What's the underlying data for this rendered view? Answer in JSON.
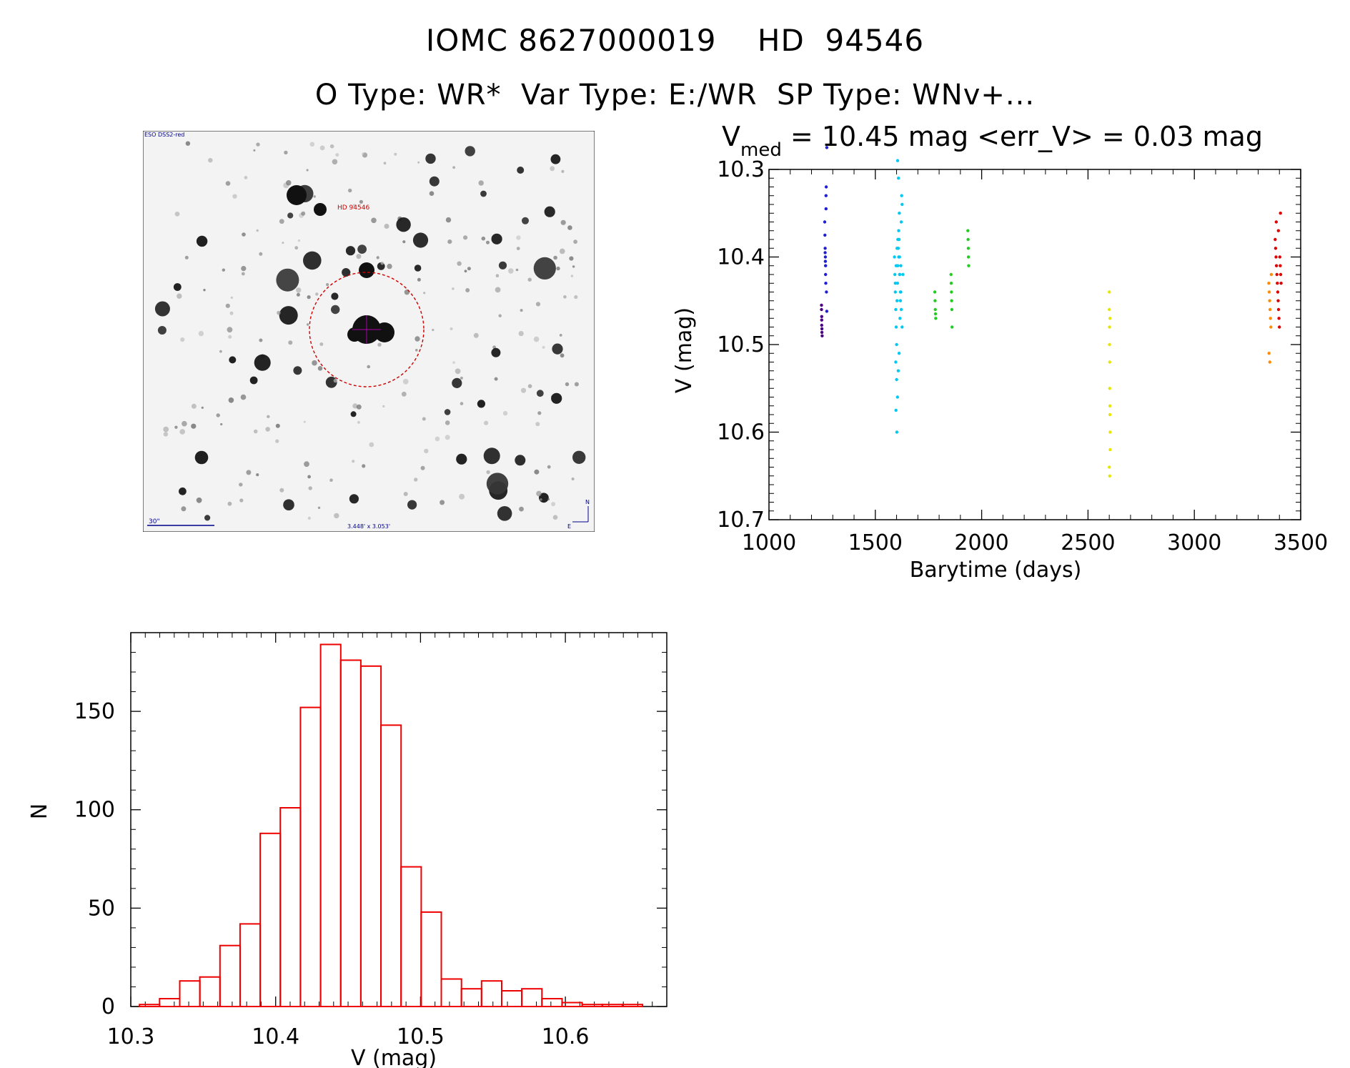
{
  "header": {
    "title_line1": "IOMC 8627000019    HD  94546",
    "title_line2": "O Type: WR*  Var Type: E:/WR  SP Type: WNv+..."
  },
  "finder": {
    "survey_label": "ESO DSS2-red",
    "target_label": "HD 94546",
    "scale_label": "30\"",
    "fov_label": "3.448' x 3.053'",
    "north_label": "N",
    "east_label": "E",
    "circle_color": "#cc0000",
    "label_color": "#00008b"
  },
  "chart_data": [
    {
      "type": "scatter",
      "title_main": "V",
      "title_sub": "med",
      "title_rest": " = 10.45 mag <err_V> = 0.03 mag",
      "xlabel": "Barytime (days)",
      "ylabel": "V (mag)",
      "xlim": [
        1000,
        3500
      ],
      "ylim": [
        10.7,
        10.3
      ],
      "y_inverted": true,
      "xticks": [
        1000,
        1500,
        2000,
        2500,
        3000,
        3500
      ],
      "yticks": [
        10.3,
        10.4,
        10.5,
        10.6,
        10.7
      ],
      "xtick_labels": [
        "1000",
        "1500",
        "2000",
        "2500",
        "3000",
        "3500"
      ],
      "ytick_labels": [
        "10.3",
        "10.4",
        "10.5",
        "10.6",
        "10.7"
      ],
      "grid": false,
      "series": [
        {
          "color": "#4b0082",
          "x": [
            1247,
            1247,
            1248,
            1248,
            1248,
            1249,
            1249,
            1250
          ],
          "y": [
            10.455,
            10.46,
            10.468,
            10.472,
            10.478,
            10.482,
            10.486,
            10.49
          ]
        },
        {
          "color": "#1f1fd6",
          "x": [
            1262,
            1263,
            1264,
            1264,
            1265,
            1265,
            1266,
            1266,
            1267,
            1268,
            1268,
            1269,
            1270,
            1272,
            1272
          ],
          "y": [
            10.36,
            10.375,
            10.39,
            10.395,
            10.4,
            10.405,
            10.41,
            10.42,
            10.43,
            10.345,
            10.33,
            10.32,
            10.44,
            10.462,
            10.275
          ]
        },
        {
          "color": "#00c8f0",
          "x": [
            1590,
            1592,
            1594,
            1596,
            1598,
            1600,
            1602,
            1604,
            1606,
            1608,
            1610,
            1612,
            1614,
            1616,
            1618,
            1620,
            1622,
            1624,
            1626,
            1596,
            1600,
            1604,
            1608,
            1612,
            1616,
            1620,
            1594,
            1598,
            1602,
            1606,
            1610,
            1614,
            1618,
            1622,
            1626,
            1630,
            1597,
            1601,
            1605,
            1609,
            1613
          ],
          "y": [
            10.4,
            10.42,
            10.44,
            10.46,
            10.48,
            10.5,
            10.45,
            10.43,
            10.41,
            10.39,
            10.37,
            10.38,
            10.4,
            10.42,
            10.45,
            10.41,
            10.36,
            10.33,
            10.34,
            10.52,
            10.54,
            10.56,
            10.53,
            10.51,
            10.47,
            10.44,
            10.43,
            10.41,
            10.39,
            10.38,
            10.4,
            10.42,
            10.44,
            10.46,
            10.48,
            10.42,
            10.575,
            10.6,
            10.29,
            10.31,
            10.35
          ]
        },
        {
          "color": "#22cc22",
          "x": [
            1780,
            1781,
            1782,
            1783,
            1784,
            1856,
            1857,
            1858,
            1859,
            1860,
            1861,
            1935,
            1936,
            1937,
            1938,
            1939
          ],
          "y": [
            10.44,
            10.45,
            10.46,
            10.465,
            10.47,
            10.42,
            10.43,
            10.44,
            10.45,
            10.46,
            10.48,
            10.37,
            10.38,
            10.39,
            10.4,
            10.41
          ]
        },
        {
          "color": "#e6e600",
          "x": [
            2600,
            2600,
            2601,
            2601,
            2602,
            2602,
            2603,
            2603,
            2604,
            2604,
            2600,
            2602,
            2603
          ],
          "y": [
            10.44,
            10.46,
            10.48,
            10.5,
            10.52,
            10.55,
            10.57,
            10.58,
            10.6,
            10.62,
            10.64,
            10.65,
            10.47
          ]
        },
        {
          "color": "#ff8c00",
          "x": [
            3350,
            3352,
            3354,
            3356,
            3358,
            3360,
            3362,
            3351,
            3355
          ],
          "y": [
            10.43,
            10.44,
            10.45,
            10.46,
            10.47,
            10.48,
            10.42,
            10.51,
            10.52
          ]
        },
        {
          "color": "#dd0000",
          "x": [
            3380,
            3382,
            3384,
            3386,
            3388,
            3390,
            3392,
            3394,
            3396,
            3398,
            3400,
            3402,
            3404,
            3406,
            3408,
            3385,
            3395,
            3405
          ],
          "y": [
            10.38,
            10.39,
            10.4,
            10.41,
            10.42,
            10.43,
            10.44,
            10.45,
            10.46,
            10.47,
            10.48,
            10.4,
            10.41,
            10.42,
            10.43,
            10.36,
            10.37,
            10.35
          ]
        }
      ]
    },
    {
      "type": "bar",
      "chart_subtype": "histogram",
      "xlabel": "V (mag)",
      "ylabel": "N",
      "xlim": [
        10.3,
        10.67
      ],
      "ylim": [
        0,
        190
      ],
      "xticks": [
        10.3,
        10.4,
        10.5,
        10.6
      ],
      "xtick_labels": [
        "10.3",
        "10.4",
        "10.5",
        "10.6"
      ],
      "yticks": [
        0,
        50,
        100,
        150
      ],
      "ytick_labels": [
        "0",
        "50",
        "100",
        "150"
      ],
      "bar_color": "#ee0000",
      "bin_width": 0.01389,
      "bin_start": 10.306,
      "values": [
        1,
        4,
        13,
        15,
        31,
        42,
        88,
        101,
        152,
        184,
        176,
        173,
        143,
        71,
        48,
        14,
        9,
        13,
        8,
        9,
        4,
        2,
        1,
        1,
        1
      ]
    }
  ]
}
